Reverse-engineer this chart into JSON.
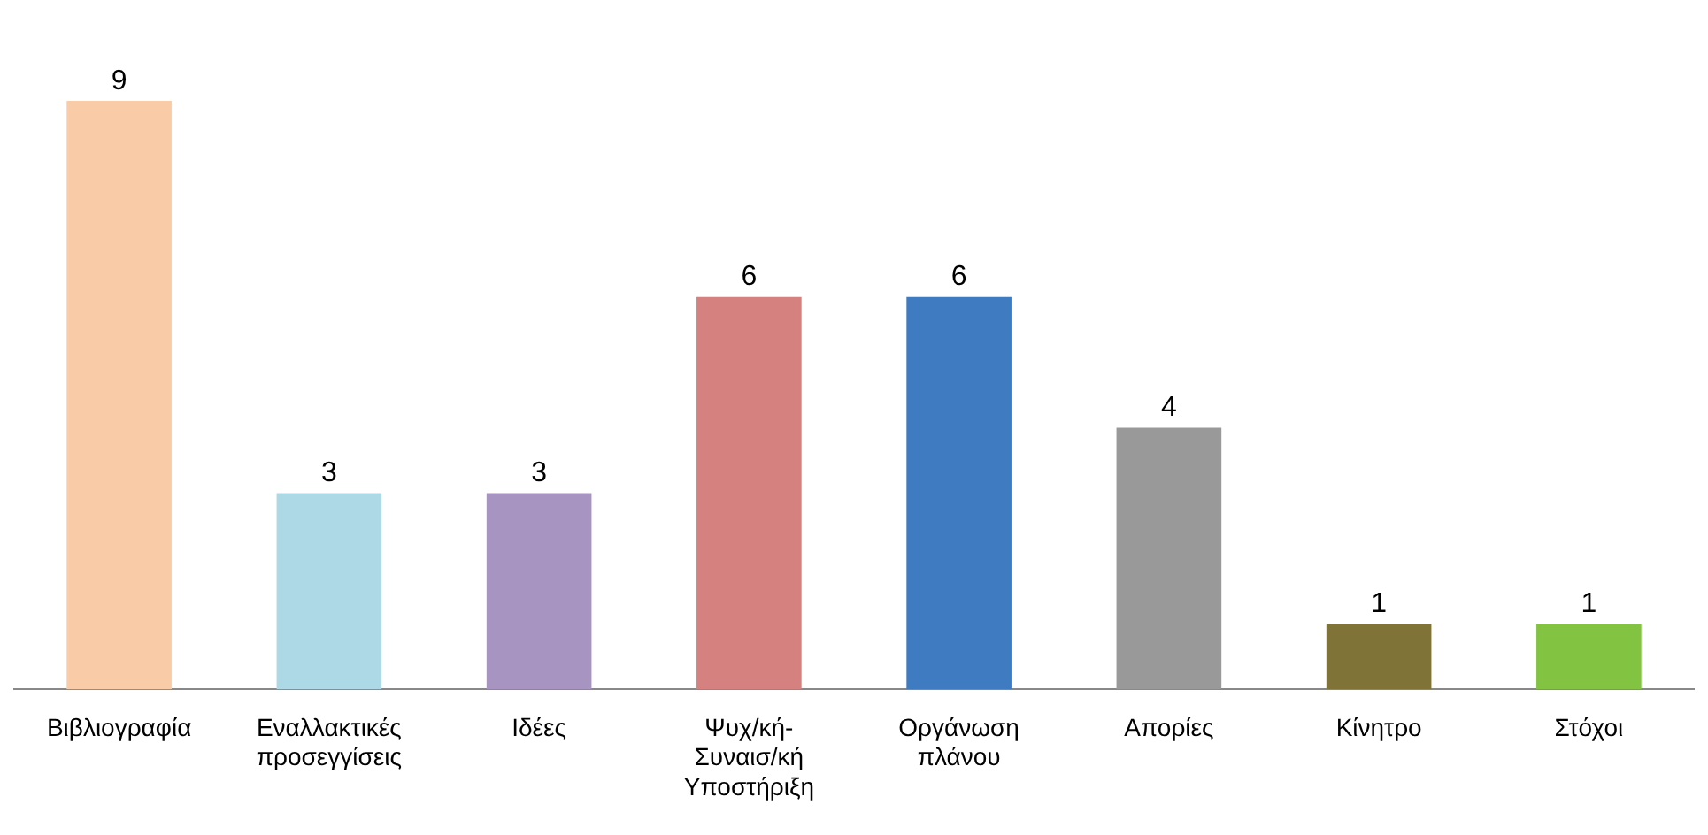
{
  "chart_data": {
    "type": "bar",
    "categories": [
      "Βιβλιογραφία",
      "Εναλλακτικές προσεγγίσεις",
      "Ιδέες",
      "Ψυχ/κή-Συναισ/κή Υποστήριξη",
      "Οργάνωση πλάνου",
      "Απορίες",
      "Κίνητρο",
      "Στόχοι"
    ],
    "values": [
      9,
      3,
      3,
      6,
      6,
      4,
      1,
      1
    ],
    "colors": [
      "#f9cba7",
      "#add8e6",
      "#a794c0",
      "#d4817f",
      "#3f7bc1",
      "#999999",
      "#7f7338",
      "#82c341"
    ],
    "data_labels": true,
    "grid": false,
    "legend": false
  }
}
